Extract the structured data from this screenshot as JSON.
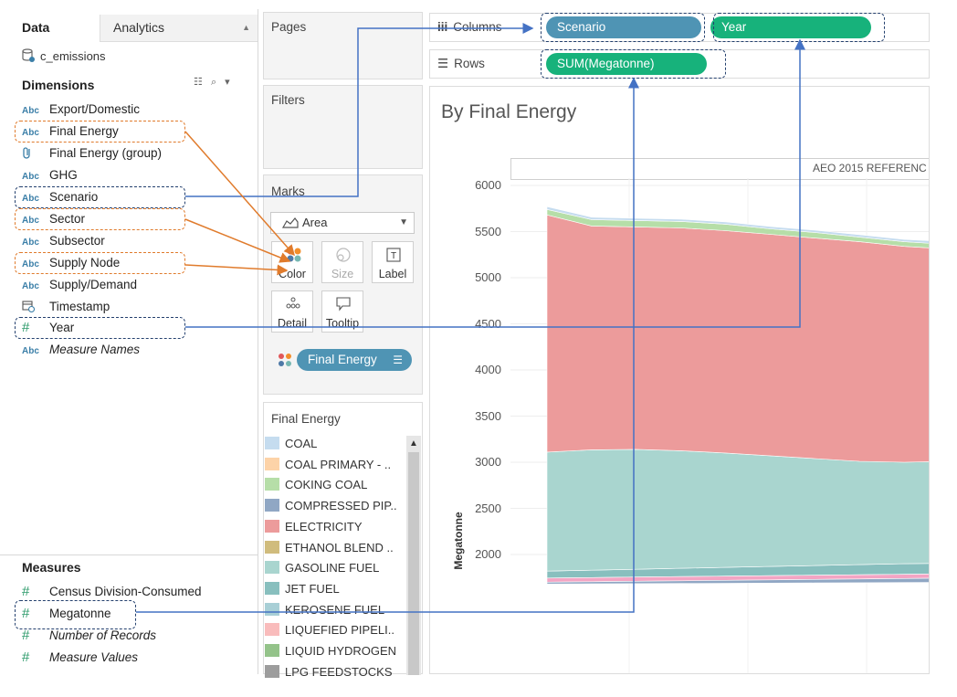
{
  "left_pane": {
    "tabs": [
      {
        "label": "Data"
      },
      {
        "label": "Analytics"
      }
    ],
    "datasource": "c_emissions",
    "dimensions_title": "Dimensions",
    "dimensions": [
      {
        "type": "Abc",
        "name": "Export/Domestic"
      },
      {
        "type": "Abc",
        "name": "Final Energy"
      },
      {
        "type": "group-icon",
        "name": "Final Energy (group)"
      },
      {
        "type": "Abc",
        "name": "GHG"
      },
      {
        "type": "Abc",
        "name": "Scenario"
      },
      {
        "type": "Abc",
        "name": "Sector"
      },
      {
        "type": "Abc",
        "name": "Subsector"
      },
      {
        "type": "Abc",
        "name": "Supply Node"
      },
      {
        "type": "Abc",
        "name": "Supply/Demand"
      },
      {
        "type": "date-icon",
        "name": "Timestamp"
      },
      {
        "type": "#",
        "name": "Year"
      },
      {
        "type": "Abc",
        "name": "Measure Names"
      }
    ],
    "measures_title": "Measures",
    "measures": [
      {
        "type": "#",
        "name": "Census Division-Consumed"
      },
      {
        "type": "#",
        "name": "Megatonne"
      },
      {
        "type": "#",
        "name": "Number of Records"
      },
      {
        "type": "#",
        "name": "Measure Values"
      }
    ]
  },
  "cards": {
    "pages_title": "Pages",
    "filters_title": "Filters",
    "marks_title": "Marks",
    "mark_type": "Area",
    "mark_buttons": [
      {
        "label": "Color"
      },
      {
        "label": "Size"
      },
      {
        "label": "Label"
      },
      {
        "label": "Detail"
      },
      {
        "label": "Tooltip"
      }
    ],
    "color_pill": "Final Energy",
    "legend_title": "Final Energy",
    "legend": [
      {
        "label": "COAL",
        "color": "#c5dcef"
      },
      {
        "label": "COAL PRIMARY - ..",
        "color": "#fdd3a8"
      },
      {
        "label": "COKING COAL",
        "color": "#b6dea8"
      },
      {
        "label": "COMPRESSED PIP..",
        "color": "#90a7c4"
      },
      {
        "label": "ELECTRICITY",
        "color": "#ec9b9b"
      },
      {
        "label": "ETHANOL BLEND ..",
        "color": "#d0bc7d"
      },
      {
        "label": "GASOLINE FUEL",
        "color": "#a9d5cf"
      },
      {
        "label": "JET FUEL",
        "color": "#88bfbe"
      },
      {
        "label": "KEROSENE FUEL",
        "color": "#a8cfd6"
      },
      {
        "label": "LIQUEFIED PIPELI..",
        "color": "#f9bcbc"
      },
      {
        "label": "LIQUID HYDROGEN",
        "color": "#94c38a"
      },
      {
        "label": "LPG FEEDSTOCKS",
        "color": "#9d9d9d"
      }
    ]
  },
  "shelves": {
    "columns_label": "Columns",
    "rows_label": "Rows",
    "columns_pills": [
      "Scenario",
      "Year"
    ],
    "rows_pills": [
      "SUM(Megatonne)"
    ]
  },
  "view": {
    "title": "By Final Energy",
    "header": "AEO 2015 REFERENC",
    "ylabel": "Megatonne"
  },
  "chart_data": {
    "type": "area",
    "ylabel": "Megatonne",
    "y_ticks": [
      2000,
      2500,
      3000,
      3500,
      4000,
      4500,
      5000,
      5500,
      6000
    ],
    "x_index": [
      0,
      1,
      2,
      3,
      4,
      5,
      6,
      7,
      8,
      9
    ],
    "series": [
      {
        "name": "GASOLINE FUEL",
        "color": "#a9d5cf",
        "lower": [
          1820,
          1830,
          1840,
          1850,
          1860,
          1870,
          1880,
          1890,
          1900,
          1905
        ],
        "upper": [
          3110,
          3135,
          3140,
          3125,
          3100,
          3070,
          3040,
          3010,
          3000,
          3010
        ]
      },
      {
        "name": "ELECTRICITY",
        "color": "#ec9b9b",
        "lower": [
          3110,
          3135,
          3140,
          3125,
          3100,
          3070,
          3040,
          3010,
          3000,
          3010
        ],
        "upper": [
          5680,
          5560,
          5550,
          5540,
          5510,
          5470,
          5430,
          5390,
          5340,
          5310
        ]
      },
      {
        "name": "COKING COAL",
        "color": "#b6dea8",
        "lower": [
          5680,
          5560,
          5550,
          5540,
          5510,
          5470,
          5430,
          5390,
          5340,
          5310
        ],
        "upper": [
          5740,
          5630,
          5620,
          5610,
          5580,
          5530,
          5490,
          5440,
          5390,
          5360
        ]
      },
      {
        "name": "COAL",
        "color": "#c5dcef",
        "lower": [
          5740,
          5630,
          5620,
          5610,
          5580,
          5530,
          5490,
          5440,
          5390,
          5360
        ],
        "upper": [
          5770,
          5655,
          5645,
          5635,
          5605,
          5555,
          5515,
          5465,
          5415,
          5390
        ]
      }
    ]
  }
}
